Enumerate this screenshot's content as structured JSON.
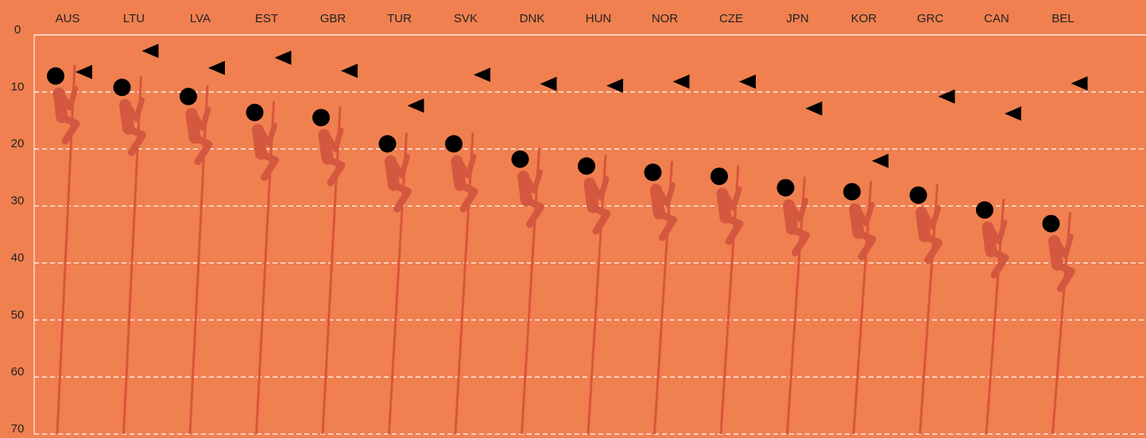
{
  "chart_data": {
    "type": "climber",
    "categories": [
      "AUS",
      "LTU",
      "LVA",
      "EST",
      "GBR",
      "TUR",
      "SVK",
      "DNK",
      "HUN",
      "NOR",
      "CZE",
      "JPN",
      "KOR",
      "GRC",
      "CAN",
      "BEL"
    ],
    "series": [
      {
        "marker": "circle",
        "color": "#000000",
        "values": [
          7.2,
          9.2,
          10.8,
          13.6,
          14.5,
          19.1,
          19.1,
          21.8,
          23,
          24.1,
          24.8,
          26.8,
          27.5,
          28.1,
          30.7,
          33.1
        ]
      },
      {
        "marker": "triangle",
        "color": "#000000",
        "values": [
          6.5,
          2.8,
          5.8,
          4,
          6.3,
          12.4,
          7,
          8.6,
          8.9,
          8.2,
          8.2,
          12.9,
          22.1,
          10.8,
          13.8,
          8.5
        ]
      }
    ],
    "ylim": [
      0,
      70
    ],
    "yticks": [
      0,
      10,
      20,
      30,
      40,
      50,
      60,
      70
    ],
    "inverted": true,
    "grid": true
  }
}
